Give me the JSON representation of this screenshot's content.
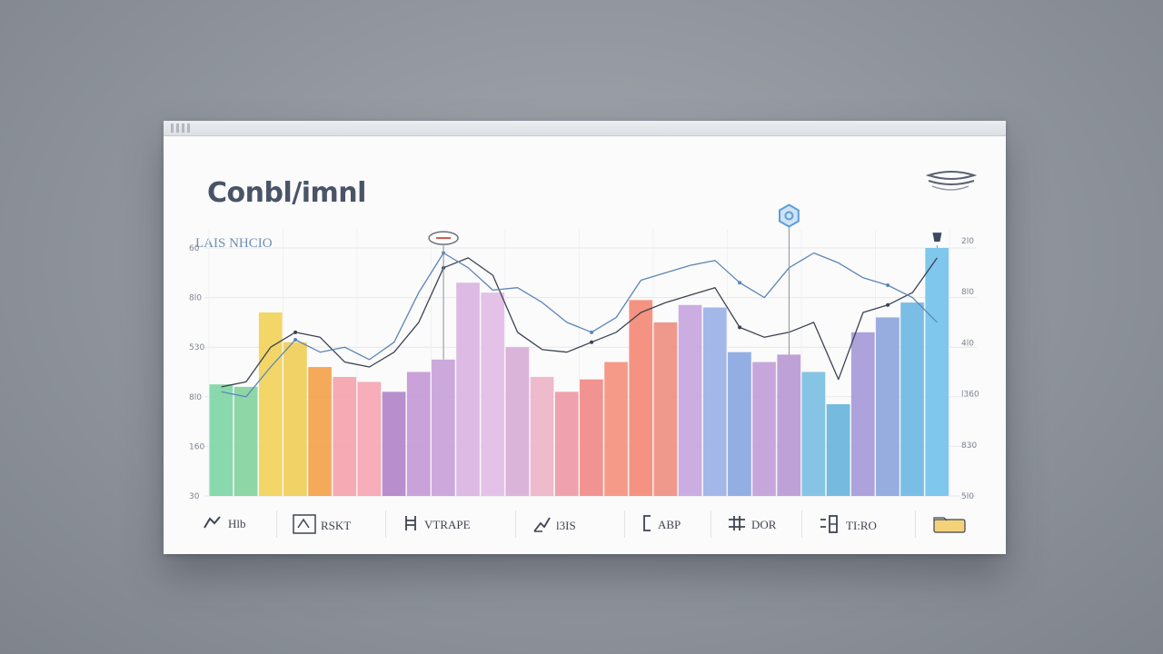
{
  "card": {
    "title": "Conbl/imnl",
    "subtitle": "LAIS NHCIO",
    "corner_icon": "layers-icon"
  },
  "chart_data": {
    "type": "bar",
    "title": "Conbl/imnl",
    "subtitle": "LAIS NHCIO",
    "ylim": [
      0,
      100
    ],
    "grid": true,
    "yticks_left": [
      "30",
      "160",
      "8l0",
      "530",
      "8l0",
      "60"
    ],
    "yticks_right": [
      "2l0",
      "8l0",
      "4l0",
      "l360",
      "830",
      "5l0"
    ],
    "bars": [
      {
        "value": 45,
        "color": "#7fd6a6"
      },
      {
        "value": 44,
        "color": "#86d39f"
      },
      {
        "value": 74,
        "color": "#f2d35b"
      },
      {
        "value": 62,
        "color": "#f0ce5a"
      },
      {
        "value": 52,
        "color": "#f3a24d"
      },
      {
        "value": 48,
        "color": "#f5a3ad"
      },
      {
        "value": 46,
        "color": "#f6a6b4"
      },
      {
        "value": 42,
        "color": "#b286c8"
      },
      {
        "value": 50,
        "color": "#c39ad6"
      },
      {
        "value": 55,
        "color": "#c8a2d8"
      },
      {
        "value": 86,
        "color": "#d9b4e2"
      },
      {
        "value": 82,
        "color": "#e2bde6"
      },
      {
        "value": 60,
        "color": "#d8aed6"
      },
      {
        "value": 48,
        "color": "#ebb5c8"
      },
      {
        "value": 42,
        "color": "#ee9aa6"
      },
      {
        "value": 47,
        "color": "#f08b88"
      },
      {
        "value": 54,
        "color": "#f4907e"
      },
      {
        "value": 79,
        "color": "#f48a78"
      },
      {
        "value": 70,
        "color": "#ee9082"
      },
      {
        "value": 77,
        "color": "#c8a6df"
      },
      {
        "value": 76,
        "color": "#9bb2e6"
      },
      {
        "value": 58,
        "color": "#8aa7e0"
      },
      {
        "value": 54,
        "color": "#c2a0d8"
      },
      {
        "value": 57,
        "color": "#b99ad4"
      },
      {
        "value": 50,
        "color": "#7bbfe2"
      },
      {
        "value": 37,
        "color": "#6ab4dc"
      },
      {
        "value": 66,
        "color": "#a69ad8"
      },
      {
        "value": 72,
        "color": "#8fa6dc"
      },
      {
        "value": 78,
        "color": "#6fb8e3"
      },
      {
        "value": 100,
        "color": "#74c2ea"
      }
    ],
    "series": [
      {
        "values": [
          44,
          46,
          60,
          66,
          64,
          54,
          52,
          58,
          70,
          92,
          96,
          89,
          66,
          59,
          58,
          62,
          66,
          74,
          78,
          81,
          84,
          68,
          64,
          66,
          70,
          47,
          74,
          77,
          82,
          96
        ],
        "color": "#3b4252"
      },
      {
        "values": [
          42,
          40,
          52,
          63,
          58,
          60,
          55,
          62,
          82,
          98,
          92,
          83,
          84,
          78,
          70,
          66,
          72,
          87,
          90,
          93,
          95,
          86,
          80,
          92,
          98,
          94,
          88,
          85,
          80,
          70
        ],
        "color": "#5b86b8"
      }
    ],
    "markers": [
      {
        "x_index": 9,
        "value": 104,
        "icon": "location-pin-icon",
        "color": "#c45a4a"
      },
      {
        "x_index": 23,
        "value": 113,
        "icon": "hexagon-marker-icon",
        "color": "#5a9fd6"
      },
      {
        "x_index": 29,
        "value": 104,
        "icon": "drop-marker-icon",
        "color": "#3a4a63"
      }
    ]
  },
  "legend": [
    {
      "icon": "runner-icon",
      "label": "Hlb",
      "color": "#3e4452"
    },
    {
      "icon": "badge-icon",
      "label": "RSKT",
      "color": "#3e4452"
    },
    {
      "icon": "ladder-icon",
      "label": "VTRAPE",
      "color": "#3e4452"
    },
    {
      "icon": "rocket-icon",
      "label": "l3IS",
      "color": "#3e4452"
    },
    {
      "icon": "bracket-icon",
      "label": "ABP",
      "color": "#3e4452"
    },
    {
      "icon": "grid-icon",
      "label": "DOR",
      "color": "#3e4452"
    },
    {
      "icon": "chart-icon",
      "label": "TI:RO",
      "color": "#3e4452"
    },
    {
      "icon": "folder-icon",
      "label": "",
      "color": "#e8b44a"
    }
  ]
}
